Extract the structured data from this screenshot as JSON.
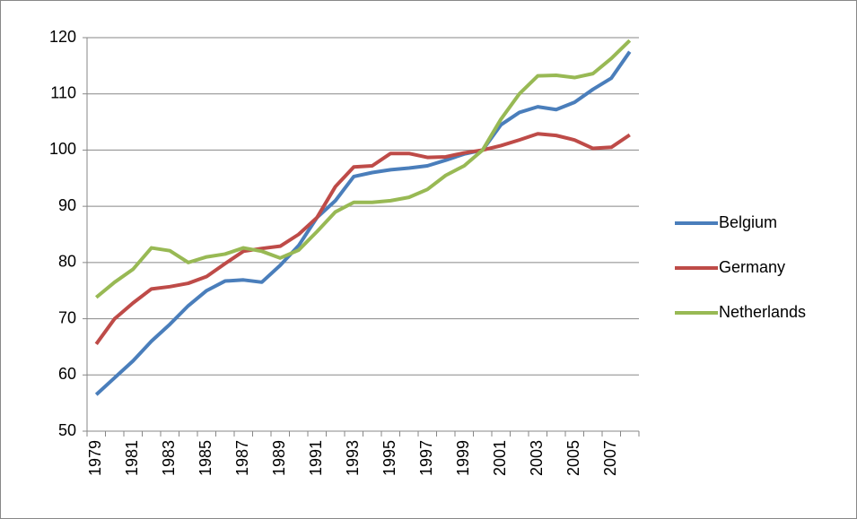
{
  "chart_data": {
    "type": "line",
    "categories": [
      "1979",
      null,
      "1981",
      null,
      "1983",
      null,
      "1985",
      null,
      "1987",
      null,
      "1989",
      null,
      "1991",
      null,
      "1993",
      null,
      "1995",
      null,
      "1997",
      null,
      "1999",
      null,
      "2001",
      null,
      "2003",
      null,
      "2005",
      null,
      "2007",
      null
    ],
    "series": [
      {
        "name": "Belgium",
        "color": "#4a7ebb",
        "values": [
          56.5,
          59.5,
          62.5,
          66,
          69,
          72.3,
          75,
          76.7,
          76.9,
          76.5,
          79.5,
          83,
          88,
          91,
          95.3,
          96,
          96.5,
          96.8,
          97.2,
          98.2,
          99.3,
          100,
          104.5,
          106.7,
          107.7,
          107.2,
          108.5,
          110.8,
          112.8,
          117.5
        ]
      },
      {
        "name": "Germany",
        "color": "#be4b48",
        "values": [
          65.5,
          70,
          72.8,
          75.3,
          75.7,
          76.3,
          77.5,
          79.8,
          82,
          82.5,
          82.9,
          85,
          88,
          93.5,
          97,
          97.2,
          99.4,
          99.4,
          98.7,
          98.8,
          99.5,
          100,
          100.8,
          101.8,
          102.9,
          102.6,
          101.8,
          100.3,
          100.5,
          102.7
        ]
      },
      {
        "name": "Netherlands",
        "color": "#98b954",
        "values": [
          73.8,
          76.5,
          78.8,
          82.6,
          82.1,
          80,
          81,
          81.5,
          82.6,
          82,
          80.8,
          82.2,
          85.5,
          89,
          90.7,
          90.7,
          91,
          91.6,
          93,
          95.5,
          97.2,
          100,
          105.5,
          110,
          113.2,
          113.3,
          112.9,
          113.6,
          116.3,
          119.5
        ]
      }
    ],
    "ylim": [
      50,
      120
    ],
    "yticks": [
      50,
      60,
      70,
      80,
      90,
      100,
      110,
      120
    ],
    "grid": true,
    "legend": "right"
  }
}
